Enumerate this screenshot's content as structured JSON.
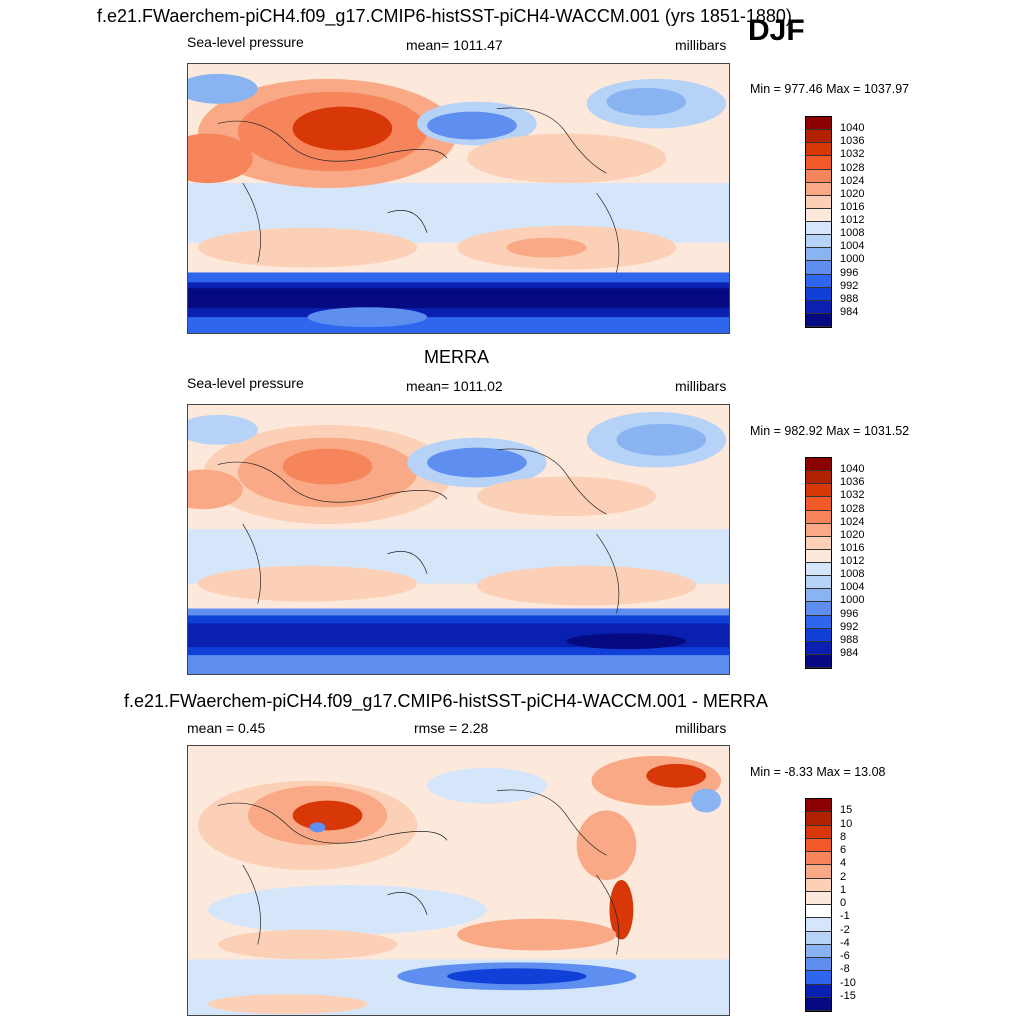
{
  "season": "DJF",
  "panels": [
    {
      "title": "f.e21.FWaerchem-piCH4.f09_g17.CMIP6-histSST-piCH4-WACCM.001 (yrs 1851-1880)",
      "left_label": "Sea-level pressure",
      "center_label": "mean= 1011.47",
      "right_label": "millibars",
      "minmax": "Min = 977.46 Max = 1037.97",
      "colorbar_labels": [
        "1040",
        "1036",
        "1032",
        "1028",
        "1024",
        "1020",
        "1016",
        "1012",
        "1008",
        "1004",
        "1000",
        "996",
        "992",
        "988",
        "984"
      ],
      "colors": [
        "#8b0000",
        "#b22200",
        "#d83808",
        "#f25a2a",
        "#f7855c",
        "#f9a985",
        "#fcd0b6",
        "#fde9dc",
        "#d5e6fa",
        "#b6d2f7",
        "#8ab3f2",
        "#5e8ff0",
        "#2f66ee",
        "#1040d8",
        "#0a20b0",
        "#050a80"
      ]
    },
    {
      "title": "MERRA",
      "left_label": "Sea-level pressure",
      "center_label": "mean= 1011.02",
      "right_label": "millibars",
      "minmax": "Min = 982.92 Max = 1031.52",
      "colorbar_labels": [
        "1040",
        "1036",
        "1032",
        "1028",
        "1024",
        "1020",
        "1016",
        "1012",
        "1008",
        "1004",
        "1000",
        "996",
        "992",
        "988",
        "984"
      ],
      "colors": [
        "#8b0000",
        "#b22200",
        "#d83808",
        "#f25a2a",
        "#f7855c",
        "#f9a985",
        "#fcd0b6",
        "#fde9dc",
        "#d5e6fa",
        "#b6d2f7",
        "#8ab3f2",
        "#5e8ff0",
        "#2f66ee",
        "#1040d8",
        "#0a20b0",
        "#050a80"
      ]
    },
    {
      "title": "f.e21.FWaerchem-piCH4.f09_g17.CMIP6-histSST-piCH4-WACCM.001 - MERRA",
      "left_label": "mean =   0.45",
      "center_label": "rmse =   2.28",
      "right_label": "millibars",
      "minmax": "Min =  -8.33 Max =  13.08",
      "colorbar_labels": [
        "15",
        "10",
        "8",
        "6",
        "4",
        "2",
        "1",
        "0",
        "-1",
        "-2",
        "-4",
        "-6",
        "-8",
        "-10",
        "-15"
      ],
      "colors": [
        "#8b0000",
        "#b22200",
        "#d83808",
        "#f25a2a",
        "#f7855c",
        "#f9a985",
        "#fcd0b6",
        "#fde9dc",
        "#ffffff",
        "#d5e6fa",
        "#b6d2f7",
        "#8ab3f2",
        "#5e8ff0",
        "#2f66ee",
        "#0a20b0",
        "#050a80"
      ]
    }
  ]
}
